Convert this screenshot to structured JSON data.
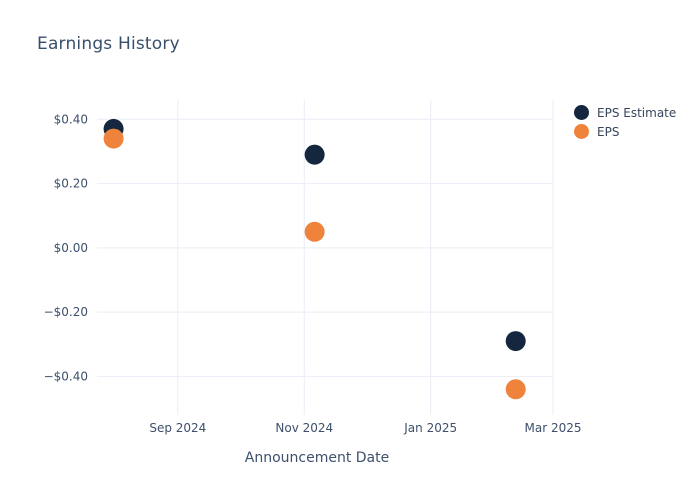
{
  "chart_data": {
    "type": "scatter",
    "title": "Earnings History",
    "xlabel": "Announcement Date",
    "ylabel": "",
    "grid": true,
    "legend_position": "outside-top-right",
    "xlim": [
      "2024-07-24",
      "2025-03-01"
    ],
    "ylim": [
      -0.52,
      0.46
    ],
    "x_ticks": [
      {
        "date": "2024-09-01",
        "label": "Sep 2024"
      },
      {
        "date": "2024-11-01",
        "label": "Nov 2024"
      },
      {
        "date": "2025-01-01",
        "label": "Jan 2025"
      },
      {
        "date": "2025-03-01",
        "label": "Mar 2025"
      }
    ],
    "y_ticks": [
      {
        "value": 0.4,
        "label": "$0.40"
      },
      {
        "value": 0.2,
        "label": "$0.20"
      },
      {
        "value": 0.0,
        "label": "$0.00"
      },
      {
        "value": -0.2,
        "label": "−$0.20"
      },
      {
        "value": -0.4,
        "label": "−$0.40"
      }
    ],
    "series": [
      {
        "name": "EPS Estimate",
        "color": "#14273f",
        "marker": "circle",
        "points": [
          {
            "date": "2024-08-01",
            "value": 0.37
          },
          {
            "date": "2024-11-06",
            "value": 0.29
          },
          {
            "date": "2025-02-11",
            "value": -0.29
          }
        ]
      },
      {
        "name": "EPS",
        "color": "#f0833c",
        "marker": "circle",
        "points": [
          {
            "date": "2024-08-01",
            "value": 0.34
          },
          {
            "date": "2024-11-06",
            "value": 0.05
          },
          {
            "date": "2025-02-11",
            "value": -0.44
          }
        ]
      }
    ]
  },
  "colors": {
    "background": "#ffffff",
    "grid": "#e9edf6",
    "title_text": "#384f6b",
    "tick_text": "#3e506b",
    "legend_text": "#37465c"
  }
}
